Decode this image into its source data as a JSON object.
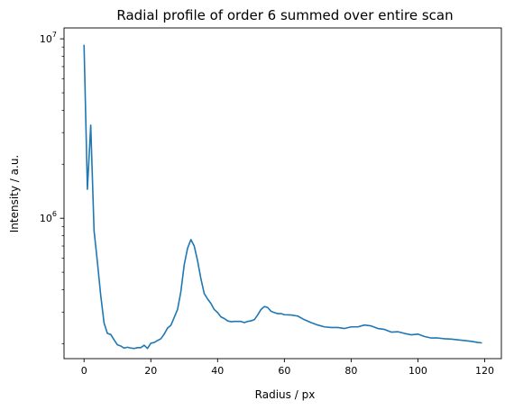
{
  "chart_data": {
    "type": "line",
    "title": "Radial profile of order 6 summed over entire scan",
    "xlabel": "Radius / px",
    "ylabel": "Intensity / a.u.",
    "yscale": "log",
    "xlim": [
      -6,
      125
    ],
    "ylim": [
      165000,
      11500000
    ],
    "grid": false,
    "x_ticks": [
      {
        "value": 0,
        "label": "0"
      },
      {
        "value": 20,
        "label": "20"
      },
      {
        "value": 40,
        "label": "40"
      },
      {
        "value": 60,
        "label": "60"
      },
      {
        "value": 80,
        "label": "80"
      },
      {
        "value": 100,
        "label": "100"
      },
      {
        "value": 120,
        "label": "120"
      }
    ],
    "y_major_ticks": [
      {
        "value": 1000000,
        "base": "10",
        "exp": "6"
      },
      {
        "value": 10000000,
        "base": "10",
        "exp": "7"
      }
    ],
    "y_minor_ticks": [
      200000,
      300000,
      400000,
      500000,
      600000,
      700000,
      800000,
      900000,
      2000000,
      3000000,
      4000000,
      5000000,
      6000000,
      7000000,
      8000000,
      9000000
    ],
    "series": [
      {
        "color": "#1f77b4",
        "x": [
          0,
          1,
          2,
          3,
          4,
          5,
          6,
          7,
          8,
          9,
          10,
          11,
          12,
          13,
          14,
          15,
          16,
          17,
          18,
          19,
          20,
          21,
          22,
          23,
          24,
          25,
          26,
          27,
          28,
          29,
          30,
          31,
          32,
          33,
          34,
          35,
          36,
          37,
          38,
          39,
          40,
          41,
          42,
          43,
          44,
          45,
          46,
          47,
          48,
          49,
          50,
          51,
          52,
          53,
          54,
          55,
          56,
          57,
          58,
          59,
          60,
          62,
          64,
          66,
          68,
          70,
          72,
          74,
          76,
          78,
          80,
          82,
          84,
          86,
          88,
          90,
          92,
          94,
          96,
          98,
          100,
          102,
          104,
          106,
          108,
          110,
          112,
          114,
          116,
          118,
          119
        ],
        "values": [
          9200000,
          1450000,
          3300000,
          850000,
          570000,
          370000,
          260000,
          228000,
          225000,
          210000,
          197000,
          194000,
          189000,
          191000,
          189000,
          188000,
          190000,
          190000,
          196000,
          188000,
          201000,
          203000,
          208000,
          213000,
          226000,
          244000,
          253000,
          280000,
          310000,
          390000,
          550000,
          680000,
          760000,
          700000,
          580000,
          460000,
          380000,
          355000,
          335000,
          310000,
          298000,
          282000,
          276000,
          268000,
          265000,
          266000,
          266000,
          266000,
          262000,
          266000,
          268000,
          272000,
          289000,
          310000,
          322000,
          318000,
          303000,
          298000,
          294000,
          294000,
          290000,
          289000,
          285000,
          272000,
          262000,
          254000,
          248000,
          246000,
          246000,
          243000,
          248000,
          248000,
          254000,
          251000,
          243000,
          240000,
          232000,
          233000,
          228000,
          224000,
          226000,
          219000,
          215000,
          215000,
          213000,
          212000,
          210000,
          208000,
          206000,
          203000,
          202000
        ]
      }
    ]
  }
}
